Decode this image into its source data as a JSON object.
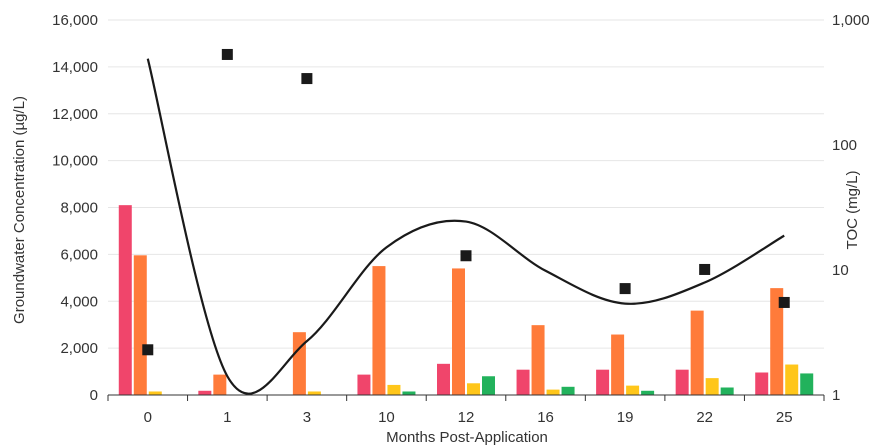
{
  "chart_data": {
    "type": "bar",
    "xlabel": "Months Post-Application",
    "ylabel": "Groundwater Concentration (µg/L)",
    "y2label": "TOC (mg/L)",
    "categories": [
      "0",
      "1",
      "3",
      "10",
      "12",
      "16",
      "19",
      "22",
      "25"
    ],
    "ylim": [
      0,
      16000
    ],
    "yticks": [
      0,
      2000,
      4000,
      6000,
      8000,
      10000,
      12000,
      14000,
      16000
    ],
    "ytick_labels": [
      "0",
      "2,000",
      "4,000",
      "6,000",
      "8,000",
      "10,000",
      "12,000",
      "14,000",
      "16,000"
    ],
    "y2scale": "log",
    "y2lim": [
      1,
      1000
    ],
    "y2ticks": [
      1,
      10,
      100,
      1000
    ],
    "y2tick_labels": [
      "1",
      "10",
      "100",
      "1,000"
    ],
    "grid": true,
    "bar_series": [
      {
        "color": "#f0456b",
        "values": [
          8100,
          180,
          0,
          870,
          1330,
          1080,
          1080,
          1080,
          960
        ]
      },
      {
        "color": "#ff7b3a",
        "values": [
          5960,
          870,
          2680,
          5500,
          5400,
          2980,
          2580,
          3600,
          4560
        ]
      },
      {
        "color": "#ffc61a",
        "values": [
          150,
          0,
          150,
          430,
          500,
          230,
          400,
          720,
          1300
        ]
      },
      {
        "color": "#22b25c",
        "values": [
          0,
          0,
          0,
          150,
          800,
          350,
          180,
          320,
          920
        ]
      }
    ],
    "scatter_series": {
      "color": "#1a1a1a",
      "axis": "right",
      "values": [
        2.3,
        530,
        340,
        0,
        13,
        0,
        7.1,
        10.1,
        5.5
      ]
    },
    "line_series": {
      "color": "#1a1a1a",
      "axis": "left",
      "values": [
        14350,
        800,
        2300,
        6300,
        7400,
        5300,
        3900,
        4800,
        6800
      ]
    }
  }
}
